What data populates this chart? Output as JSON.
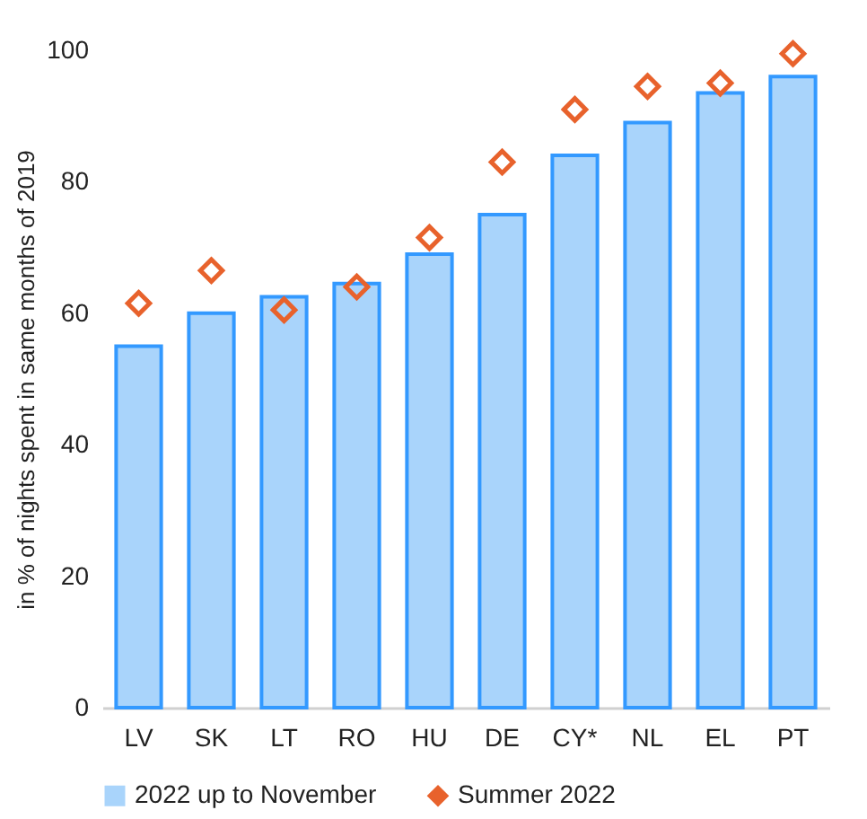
{
  "chart_data": {
    "type": "bar",
    "ylabel": "in % of nights spent in same months of 2019",
    "categories": [
      "LV",
      "SK",
      "LT",
      "RO",
      "HU",
      "DE",
      "CY*",
      "NL",
      "EL",
      "PT"
    ],
    "series": [
      {
        "name": "2022 up to November",
        "color": "#a9d4fb",
        "values": [
          55,
          60,
          62.5,
          64.5,
          69,
          75,
          84,
          89,
          93.5,
          96
        ]
      },
      {
        "name": "Summer 2022",
        "type": "scatter",
        "marker": "diamond",
        "color": "#e8622c",
        "values": [
          61.5,
          66.5,
          60.5,
          64,
          71.5,
          83,
          91,
          94.5,
          95,
          99.5
        ]
      }
    ],
    "ylim": [
      0,
      100
    ],
    "yticks": [
      0,
      20,
      40,
      60,
      80,
      100
    ],
    "grid": false,
    "legend": "bottom"
  }
}
